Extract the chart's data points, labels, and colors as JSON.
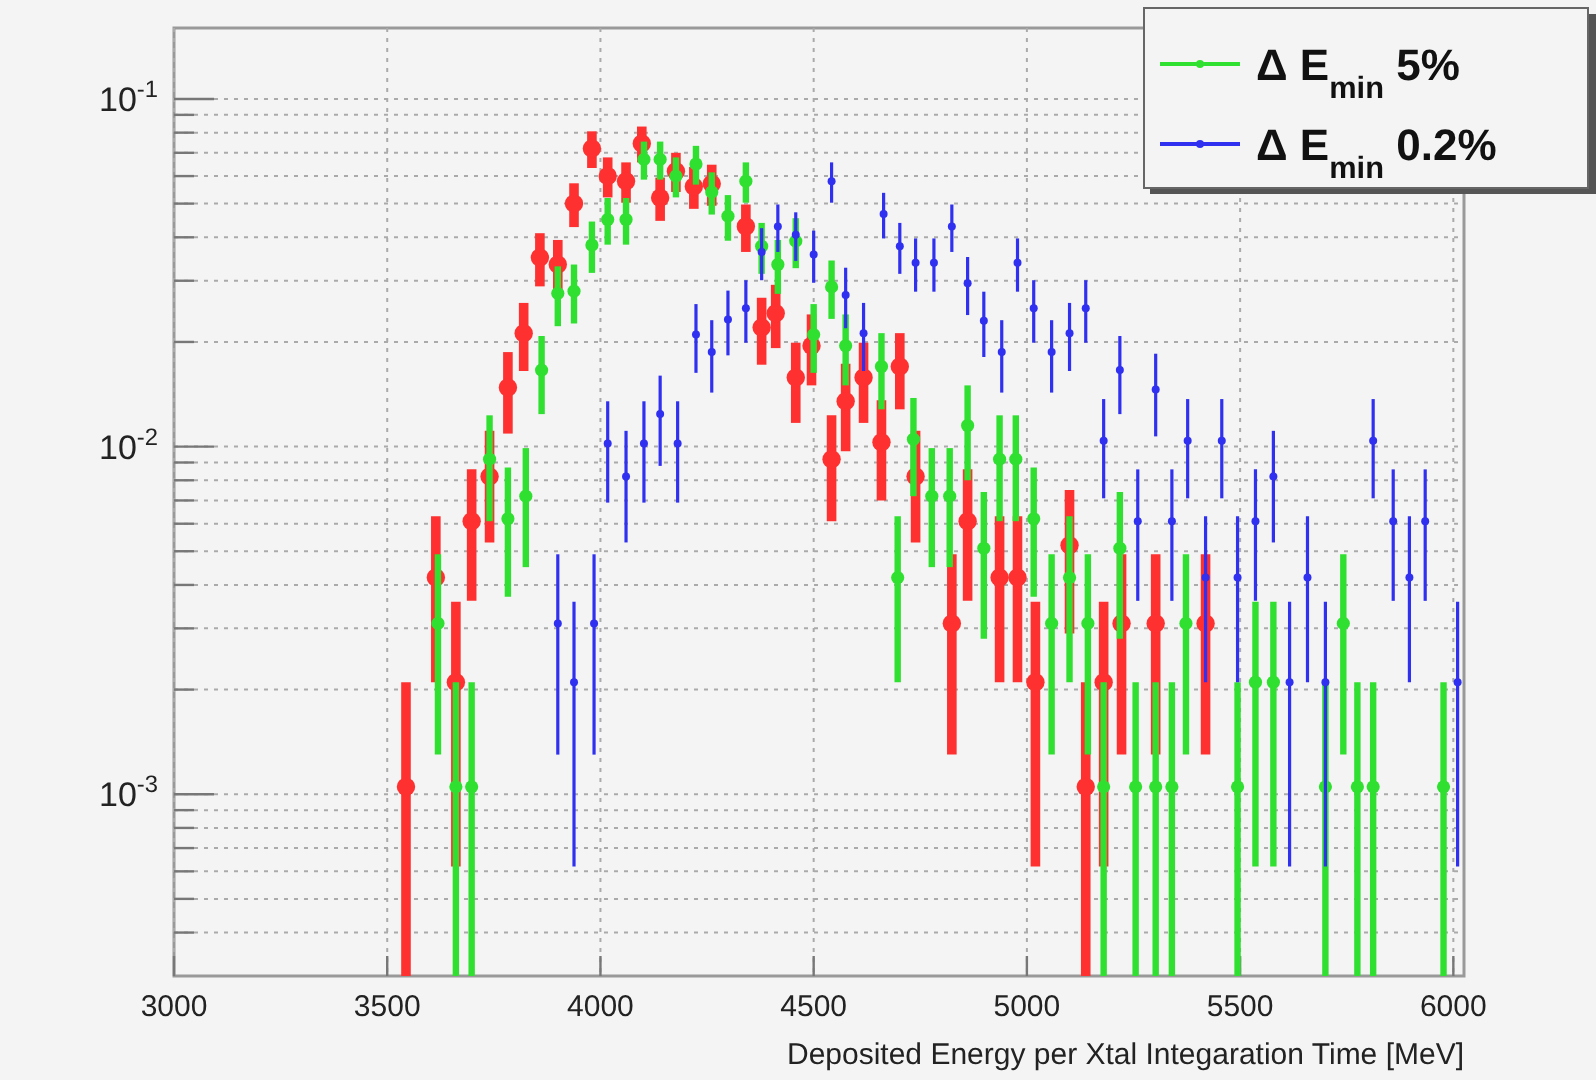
{
  "chart_data": {
    "type": "scatter",
    "xlabel": "Deposited Energy per Xtal Integaration Time [MeV]",
    "log": "y",
    "grid": true,
    "legend": "top right",
    "marker": "circle",
    "xlim": [
      3000,
      6025
    ],
    "xticks": [
      3000,
      3500,
      4000,
      4500,
      5000,
      5500,
      6000
    ],
    "ylim": [
      0.0003,
      0.16
    ],
    "yticks": [
      {
        "value": 0.0004,
        "label": null
      },
      {
        "value": 0.0005,
        "label": null
      },
      {
        "value": 0.0006,
        "label": null
      },
      {
        "value": 0.0007,
        "label": null
      },
      {
        "value": 0.0008,
        "label": null
      },
      {
        "value": 0.0009,
        "label": null
      },
      {
        "value": 0.001,
        "label": "10$^{-3}$"
      },
      {
        "value": 0.002,
        "label": null
      },
      {
        "value": 0.003,
        "label": null
      },
      {
        "value": 0.004,
        "label": null
      },
      {
        "value": 0.005,
        "label": null
      },
      {
        "value": 0.006,
        "label": null
      },
      {
        "value": 0.007,
        "label": null
      },
      {
        "value": 0.008,
        "label": null
      },
      {
        "value": 0.009,
        "label": null
      },
      {
        "value": 0.01,
        "label": "10$^{-2}$"
      },
      {
        "value": 0.02,
        "label": null
      },
      {
        "value": 0.03,
        "label": null
      },
      {
        "value": 0.04,
        "label": null
      },
      {
        "value": 0.05,
        "label": null
      },
      {
        "value": 0.06,
        "label": null
      },
      {
        "value": 0.07,
        "label": null
      },
      {
        "value": 0.08,
        "label": null
      },
      {
        "value": 0.09,
        "label": null
      },
      {
        "value": 0.1,
        "label": "10$^{-1}$"
      }
    ],
    "series": [
      {
        "color": "#ff3030",
        "x": [
          3544,
          3614,
          3661,
          3698,
          3740,
          3783,
          3820,
          3858,
          3900,
          3938,
          3980,
          4017,
          4060,
          4097,
          4140,
          4177,
          4219,
          4261,
          4341,
          4378,
          4411,
          4458,
          4495,
          4542,
          4575,
          4617,
          4659,
          4702,
          4739,
          4824,
          4861,
          4936,
          4978,
          5020,
          5100,
          5138,
          5180,
          5222,
          5302,
          5419
        ],
        "values": [
          0.00105,
          0.0042,
          0.0021,
          0.0061,
          0.0082,
          0.0148,
          0.0212,
          0.035,
          0.0334,
          0.05,
          0.072,
          0.06,
          0.058,
          0.0745,
          0.052,
          0.062,
          0.056,
          0.057,
          0.043,
          0.022,
          0.0242,
          0.0158,
          0.0195,
          0.0092,
          0.0135,
          0.0158,
          0.0103,
          0.017,
          0.0082,
          0.0031,
          0.0061,
          0.0042,
          0.0042,
          0.0021,
          0.0052,
          0.00105,
          0.0021,
          0.0031,
          0.0031,
          0.0031
        ],
        "errors": [
          [
            0.0003,
            0.0021
          ],
          0.0021,
          0.00148,
          0.0025,
          0.0029,
          0.0039,
          0.0047,
          0.0061,
          0.0059,
          0.0072,
          0.0087,
          0.0079,
          0.0077,
          0.0088,
          0.0074,
          0.008,
          0.0077,
          0.0077,
          0.0067,
          0.0048,
          0.005,
          0.0041,
          0.0045,
          0.0031,
          0.0038,
          0.0041,
          0.0033,
          0.0042,
          0.0029,
          0.0018,
          0.0025,
          0.0021,
          0.0021,
          0.00148,
          0.0023,
          [
            0.0003,
            0.0021
          ],
          0.00148,
          0.0018,
          0.0018,
          0.0018
        ]
      },
      {
        "name": "Δ E$_{min}$ 5%",
        "color": "#30e030",
        "x": [
          3619,
          3661,
          3698,
          3740,
          3783,
          3825,
          3862,
          3900,
          3938,
          3980,
          4017,
          4060,
          4102,
          4140,
          4177,
          4224,
          4261,
          4299,
          4341,
          4378,
          4416,
          4458,
          4500,
          4542,
          4575,
          4659,
          4697,
          4734,
          4777,
          4819,
          4861,
          4899,
          4936,
          4974,
          5016,
          5058,
          5100,
          5143,
          5180,
          5218,
          5255,
          5302,
          5340,
          5373,
          5494,
          5536,
          5578,
          5700,
          5742,
          5775,
          5812,
          5977
        ],
        "values": [
          0.0031,
          0.00105,
          0.00105,
          0.0092,
          0.0062,
          0.0072,
          0.0166,
          0.0276,
          0.028,
          0.038,
          0.045,
          0.045,
          0.067,
          0.067,
          0.06,
          0.065,
          0.054,
          0.046,
          0.058,
          0.0377,
          0.0334,
          0.039,
          0.021,
          0.0288,
          0.0195,
          0.017,
          0.0042,
          0.0105,
          0.0072,
          0.0072,
          0.0115,
          0.0051,
          0.0092,
          0.0092,
          0.0062,
          0.0031,
          0.0042,
          0.0031,
          0.00105,
          0.0051,
          0.00105,
          0.00105,
          0.00105,
          0.0031,
          0.00105,
          0.0021,
          0.0021,
          0.00105,
          0.0031,
          0.00105,
          0.00105,
          0.00105
        ],
        "errors": [
          0.0018,
          [
            0.0003,
            0.0021
          ],
          [
            0.0003,
            0.0021
          ],
          0.0031,
          0.0025,
          0.0027,
          0.0042,
          0.0054,
          0.0054,
          0.0064,
          0.0069,
          0.0069,
          0.0084,
          0.0084,
          0.0079,
          0.0083,
          0.0075,
          0.0069,
          0.0077,
          0.0063,
          0.0059,
          0.0064,
          0.0047,
          0.0055,
          0.0045,
          0.0042,
          0.0021,
          0.0033,
          0.0027,
          0.0027,
          0.0035,
          0.0023,
          0.0031,
          0.0031,
          0.0025,
          0.0018,
          0.0021,
          0.0018,
          [
            0.0003,
            0.0021
          ],
          0.0023,
          [
            0.0003,
            0.0021
          ],
          [
            0.0003,
            0.0021
          ],
          [
            0.0003,
            0.0021
          ],
          0.0018,
          [
            0.0003,
            0.0021
          ],
          0.00148,
          0.00148,
          [
            0.0003,
            0.0021
          ],
          0.0018,
          [
            0.0003,
            0.0021
          ],
          [
            0.0003,
            0.0021
          ],
          [
            0.0003,
            0.0021
          ]
        ]
      },
      {
        "name": "Δ E$_{min}$ 0.2%",
        "color": "#3030f0",
        "x": [
          3900,
          3938,
          3985,
          4017,
          4060,
          4102,
          4140,
          4181,
          4224,
          4261,
          4299,
          4341,
          4378,
          4416,
          4458,
          4500,
          4542,
          4575,
          4617,
          4664,
          4702,
          4739,
          4782,
          4824,
          4861,
          4899,
          4941,
          4978,
          5016,
          5058,
          5100,
          5138,
          5180,
          5218,
          5260,
          5302,
          5340,
          5377,
          5419,
          5457,
          5494,
          5536,
          5578,
          5616,
          5658,
          5700,
          5812,
          5859,
          5897,
          5934,
          6010
        ],
        "values": [
          0.0031,
          0.0021,
          0.0031,
          0.0102,
          0.0082,
          0.0102,
          0.0124,
          0.0102,
          0.021,
          0.0187,
          0.0232,
          0.025,
          0.0363,
          0.043,
          0.0407,
          0.0357,
          0.058,
          0.0273,
          0.0212,
          0.0467,
          0.0377,
          0.0338,
          0.0338,
          0.043,
          0.0295,
          0.023,
          0.0187,
          0.0338,
          0.025,
          0.0187,
          0.0212,
          0.025,
          0.0104,
          0.0166,
          0.0061,
          0.0146,
          0.0061,
          0.0104,
          0.0042,
          0.0104,
          0.0042,
          0.0061,
          0.0082,
          0.0021,
          0.0042,
          0.0021,
          0.0104,
          0.0061,
          0.0042,
          0.0061,
          0.0021
        ],
        "errors": [
          0.0018,
          0.00148,
          0.0018,
          0.0033,
          0.0029,
          0.0033,
          0.0036,
          0.0033,
          0.0047,
          0.0044,
          0.0049,
          0.0051,
          0.0062,
          0.0067,
          0.0065,
          0.0061,
          0.0077,
          0.0054,
          0.0047,
          0.007,
          0.0063,
          0.0059,
          0.0059,
          0.0067,
          0.0056,
          0.0049,
          0.0044,
          0.0059,
          0.0051,
          0.0044,
          0.0047,
          0.0051,
          0.0033,
          0.0042,
          0.0025,
          0.0039,
          0.0025,
          0.0033,
          0.0021,
          0.0033,
          0.0021,
          0.0025,
          0.0029,
          0.00148,
          0.0021,
          0.00148,
          0.0033,
          0.0025,
          0.0021,
          0.0025,
          0.00148
        ]
      }
    ]
  }
}
